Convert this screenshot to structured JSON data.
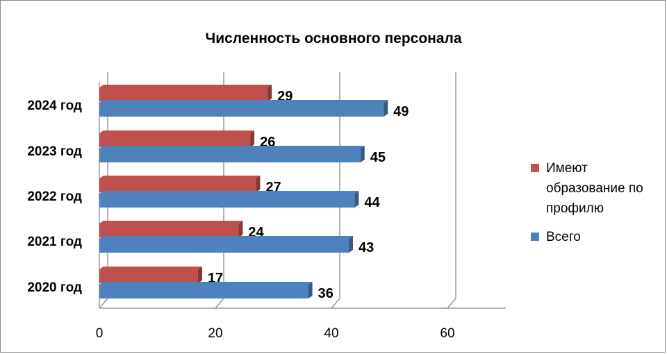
{
  "chart_data": {
    "type": "bar",
    "orientation": "horizontal",
    "title": "Численность основного персонала",
    "categories": [
      "2020 год",
      "2021 год",
      "2022 год",
      "2023 год",
      "2024 год"
    ],
    "series": [
      {
        "name": "Имеют образование по профилю",
        "values": [
          17,
          24,
          27,
          26,
          29
        ],
        "color": "#c0504d"
      },
      {
        "name": "Всего",
        "values": [
          36,
          43,
          44,
          45,
          49
        ],
        "color": "#4f81bd"
      }
    ],
    "xticks": [
      "0",
      "20",
      "40",
      "60"
    ],
    "xlim": [
      0,
      60
    ],
    "grid": true,
    "legend": "right"
  }
}
